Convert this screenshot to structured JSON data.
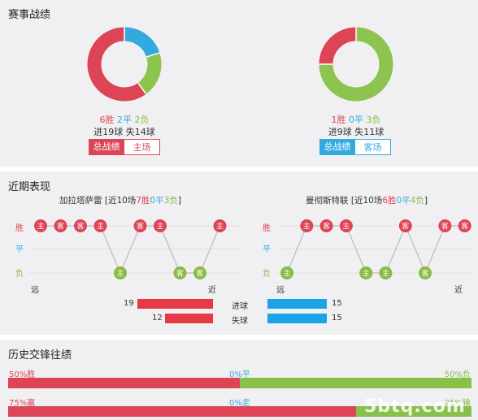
{
  "section1": {
    "title": "赛事战绩",
    "home": {
      "donut": {
        "win": 6,
        "draw": 2,
        "loss": 2
      },
      "wins": "6胜",
      "draws": "2平",
      "losses": "2负",
      "goals": "进19球  失14球",
      "tab_active": "总战绩",
      "tab_other": "主场"
    },
    "away": {
      "donut": {
        "win": 1,
        "draw": 0,
        "loss": 3
      },
      "wins": "1胜",
      "draws": "0平",
      "losses": "3负",
      "goals": "进9球  失11球",
      "tab_active": "总战绩",
      "tab_other": "客场"
    }
  },
  "section2": {
    "title": "近期表现",
    "home_head": {
      "name": "加拉塔萨雷",
      "pre": "[近10场",
      "w": "7胜",
      "d": "0平",
      "l": "3负",
      "post": "]"
    },
    "away_head": {
      "name": "曼彻斯特联",
      "pre": "[近10场",
      "w": "6胜",
      "d": "0平",
      "l": "4负",
      "post": "]"
    },
    "ylabels": {
      "win": "胜",
      "draw": "平",
      "loss": "负"
    },
    "far": "远",
    "near": "近",
    "home_results": [
      {
        "r": "W",
        "v": "主"
      },
      {
        "r": "W",
        "v": "客"
      },
      {
        "r": "W",
        "v": "客"
      },
      {
        "r": "W",
        "v": "主"
      },
      {
        "r": "L",
        "v": "主"
      },
      {
        "r": "W",
        "v": "客"
      },
      {
        "r": "W",
        "v": "主"
      },
      {
        "r": "L",
        "v": "客"
      },
      {
        "r": "L",
        "v": "客"
      },
      {
        "r": "W",
        "v": "主"
      }
    ],
    "away_results": [
      {
        "r": "L",
        "v": "主"
      },
      {
        "r": "W",
        "v": "主"
      },
      {
        "r": "W",
        "v": "客"
      },
      {
        "r": "W",
        "v": "主"
      },
      {
        "r": "L",
        "v": "主"
      },
      {
        "r": "L",
        "v": "主"
      },
      {
        "r": "W",
        "v": "客"
      },
      {
        "r": "L",
        "v": "客"
      },
      {
        "r": "W",
        "v": "客"
      },
      {
        "r": "W",
        "v": "客"
      }
    ],
    "goals_for_label": "进球",
    "goals_against_label": "失球",
    "home_for": 19,
    "home_against": 12,
    "away_for": 15,
    "away_against": 15,
    "colors": {
      "win": "#dd4455",
      "loss": "#88bb44",
      "line": "#bbbbbb",
      "grid": "#e2e2e2"
    }
  },
  "section3": {
    "title": "历史交锋往绩",
    "row1": {
      "left": "50%胜",
      "mid": "0%平",
      "right": "50%负",
      "left_pct": 50,
      "right_pct": 50
    },
    "row2": {
      "left": "75%赢",
      "mid": "0%走",
      "right": "25%输",
      "left_pct": 75,
      "right_pct": 25
    },
    "watermark": "5btq.com"
  }
}
